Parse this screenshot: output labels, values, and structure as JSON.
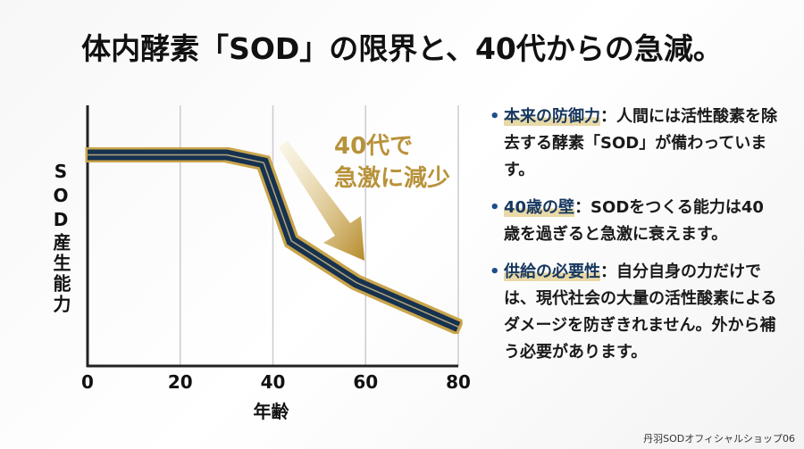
{
  "title": "体内酵素「SOD」の限界と、40代からの急減。",
  "chart_data": {
    "type": "line",
    "x": [
      0,
      30,
      38,
      44,
      58,
      80
    ],
    "series": [
      {
        "color": "#14304f",
        "values": [
          81,
          81,
          78,
          48,
          32,
          15
        ]
      }
    ],
    "xlim": [
      0,
      80
    ],
    "xticks": [
      0,
      20,
      40,
      60,
      80
    ],
    "ylim": [
      0,
      100
    ],
    "grid": true,
    "xlabel": "年齢",
    "ylabel": "SOD産生能力",
    "annotation": [
      "40代で",
      "急激に減少"
    ]
  },
  "notes": [
    {
      "term": "本来の防御力",
      "text": "：人間には活性酸素を除去する酵素「SOD」が備わっています。"
    },
    {
      "term": "40歳の壁",
      "text": "：SODをつくる能力は40歳を過ぎると急激に衰えます。"
    },
    {
      "term": "供給の必要性",
      "text": "：自分自身の力だけでは、現代社会の大量の活性酸素によるダメージを防ぎきれません。外から補う必要があります。"
    }
  ],
  "footer": "丹羽SODオフィシャルショップ06"
}
